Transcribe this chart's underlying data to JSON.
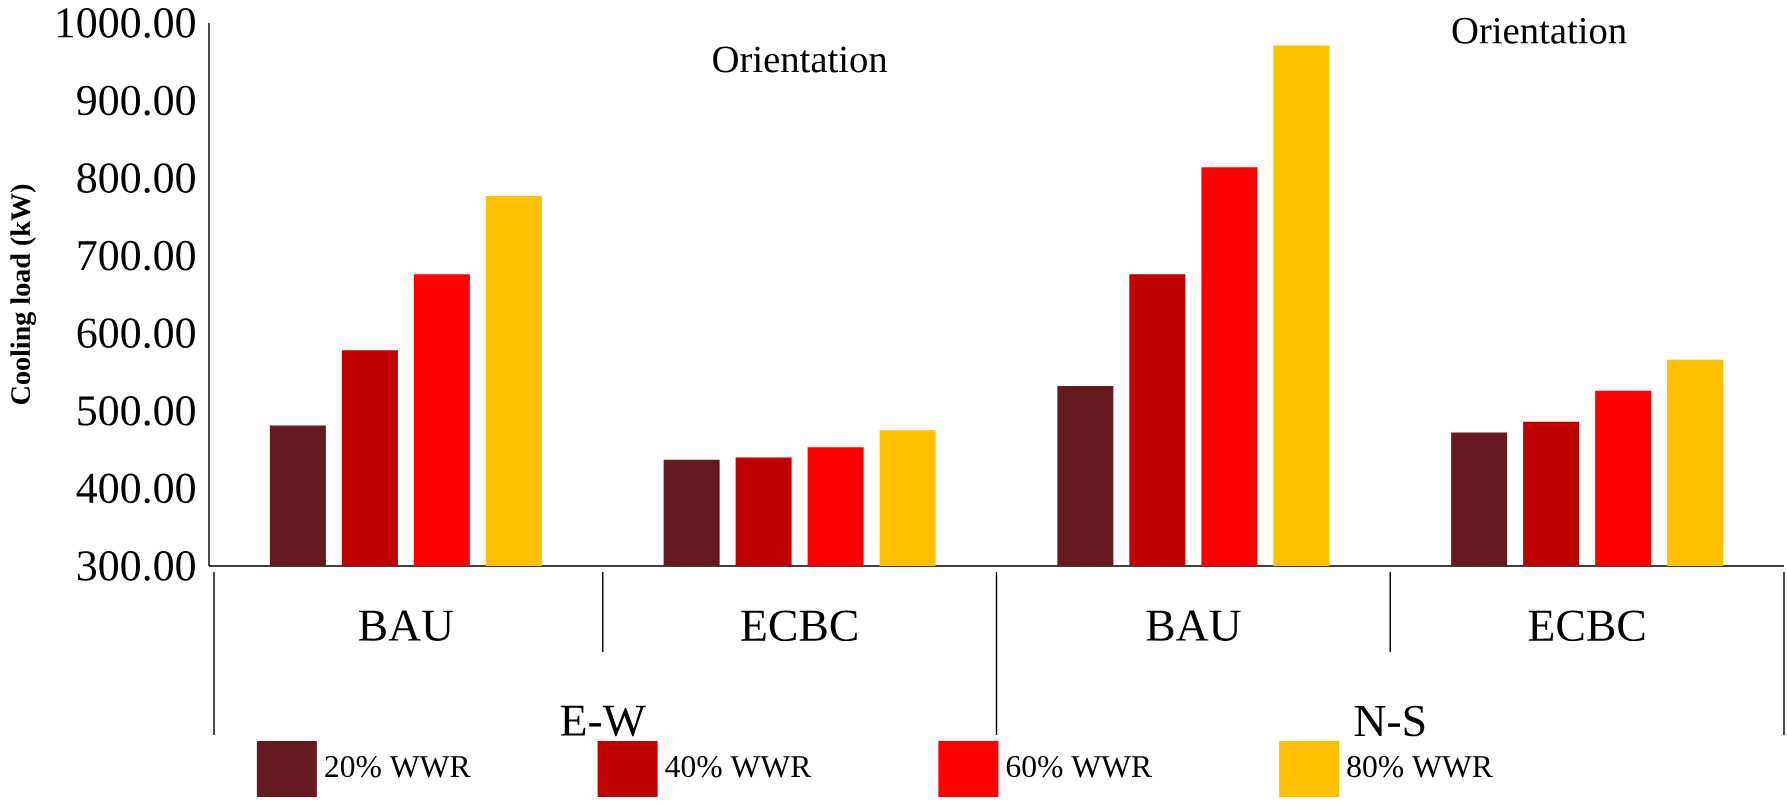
{
  "chart_data": {
    "type": "bar",
    "ylabel": "**Cooling load (kW)**",
    "categories": [
      "BAU",
      "ECBC",
      "BAU",
      "ECBC"
    ],
    "series": [
      {
        "name": "20% WWR",
        "color": "#641a1e",
        "values": [
          481,
          437,
          532,
          472
        ]
      },
      {
        "name": "40% WWR",
        "color": "#c00000",
        "values": [
          578,
          440,
          676,
          486
        ]
      },
      {
        "name": "60% WWR",
        "color": "#ff0000",
        "values": [
          676,
          453,
          814,
          526
        ]
      },
      {
        "name": "80% WWR",
        "color": "#ffc000",
        "values": [
          777,
          475,
          971,
          566
        ]
      }
    ],
    "ylim": [
      300,
      1000
    ],
    "yticks": [
      {
        "value": 300,
        "label": "300.00"
      },
      {
        "value": 400,
        "label": "400.00"
      },
      {
        "value": 500,
        "label": "500.00"
      },
      {
        "value": 600,
        "label": "600.00"
      },
      {
        "value": 700,
        "label": "700.00"
      },
      {
        "value": 800,
        "label": "800.00"
      },
      {
        "value": 900,
        "label": "900.00"
      },
      {
        "value": 1000,
        "label": "1000.00"
      }
    ],
    "annotations": [
      "E-W",
      "N-S",
      "Orientation",
      "Orientation"
    ],
    "legend": "bottom",
    "grid": false
  }
}
